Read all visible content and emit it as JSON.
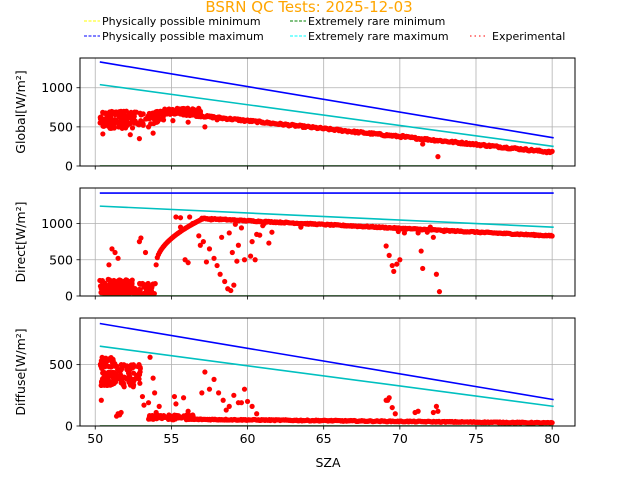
{
  "chart_data": {
    "type": "scatter",
    "title": "BSRN QC Tests: 2025-12-03",
    "title_color": "#ffa500",
    "xlabel": "SZA",
    "xlim": [
      49,
      81.5
    ],
    "xticks": [
      50,
      55,
      60,
      65,
      70,
      75,
      80
    ],
    "grid": true,
    "legend": {
      "placement": "top",
      "entries": [
        {
          "label": "Physically possible minimum",
          "color": "#ffff00",
          "style": "dashed"
        },
        {
          "label": "Extremely rare minimum",
          "color": "#008000",
          "style": "dashed"
        },
        {
          "label": "Physically possible maximum",
          "color": "#0000ff",
          "style": "dashed"
        },
        {
          "label": "Extremely rare maximum",
          "color": "#00ffff",
          "style": "dashed"
        },
        {
          "label": "Experimental",
          "color": "#ff0000",
          "style": "dotted"
        }
      ]
    },
    "panels": [
      {
        "name": "global",
        "ylabel": "Global[W/m²]",
        "ylim": [
          0,
          1380
        ],
        "yticks": [
          0,
          500,
          1000
        ],
        "series": [
          {
            "name": "Physically possible maximum",
            "color": "#0000ff",
            "x": [
              50.3,
              80.1
            ],
            "y": [
              1330,
              360
            ]
          },
          {
            "name": "Extremely rare maximum",
            "color": "#00c0c0",
            "x": [
              50.3,
              80.1
            ],
            "y": [
              1040,
              250
            ]
          },
          {
            "name": "Extremely rare minimum",
            "color": "#008000",
            "x": [
              50.3,
              80.1
            ],
            "y": [
              0,
              0
            ]
          },
          {
            "name": "Physically possible minimum",
            "color": "#ffff00",
            "x": [
              50.3,
              80.1
            ],
            "y": [
              -4,
              -4
            ]
          }
        ],
        "experimental_clusters": [
          {
            "x": [
              50.3,
              52.5
            ],
            "y": [
              480,
              700
            ],
            "n": 120
          },
          {
            "x": [
              52.5,
              54.5
            ],
            "y": [
              520,
              690
            ],
            "n": 50
          },
          {
            "x": [
              54.5,
              57.0
            ],
            "y": [
              660,
              740
            ],
            "n": 60
          }
        ],
        "experimental_trend": {
          "x": [
            54,
            80
          ],
          "y": [
            700,
            175
          ],
          "spread": 25
        },
        "experimental_points": [
          [
            50.5,
            410
          ],
          [
            51.2,
            520
          ],
          [
            52.3,
            400
          ],
          [
            52.9,
            350
          ],
          [
            53.8,
            420
          ],
          [
            53.5,
            500
          ],
          [
            55.1,
            580
          ],
          [
            56.1,
            560
          ],
          [
            57.2,
            500
          ],
          [
            58.0,
            590
          ],
          [
            59.8,
            570
          ],
          [
            61.0,
            560
          ],
          [
            72.5,
            120
          ],
          [
            71.5,
            280
          ],
          [
            70.2,
            390
          ]
        ]
      },
      {
        "name": "direct",
        "ylabel": "Direct[W/m²]",
        "ylim": [
          0,
          1490
        ],
        "yticks": [
          0,
          500,
          1000
        ],
        "series": [
          {
            "name": "Physically possible maximum",
            "color": "#0000ff",
            "x": [
              50.3,
              80.1
            ],
            "y": [
              1420,
              1420
            ]
          },
          {
            "name": "Extremely rare maximum",
            "color": "#00c0c0",
            "x": [
              50.3,
              80.1
            ],
            "y": [
              1240,
              950
            ]
          },
          {
            "name": "Extremely rare minimum",
            "color": "#008000",
            "x": [
              50.3,
              80.1
            ],
            "y": [
              0,
              0
            ]
          },
          {
            "name": "Physically possible minimum",
            "color": "#ffff00",
            "x": [
              50.3,
              80.1
            ],
            "y": [
              -4,
              -4
            ]
          }
        ],
        "experimental_clusters": [
          {
            "x": [
              50.3,
              52.5
            ],
            "y": [
              0,
              230
            ],
            "n": 140
          },
          {
            "x": [
              52.5,
              54.0
            ],
            "y": [
              0,
              180
            ],
            "n": 40
          }
        ],
        "experimental_trend": {
          "x": [
            57,
            80
          ],
          "y": [
            1070,
            830
          ],
          "spread": 15
        },
        "experimental_rise": {
          "x": [
            54.0,
            57.0
          ],
          "y": [
            430,
            1060
          ]
        },
        "experimental_points": [
          [
            51.1,
            650
          ],
          [
            51.3,
            600
          ],
          [
            51.5,
            520
          ],
          [
            50.9,
            430
          ],
          [
            53.0,
            800
          ],
          [
            52.9,
            750
          ],
          [
            53.3,
            600
          ],
          [
            55.3,
            1090
          ],
          [
            55.6,
            1080
          ],
          [
            56.2,
            1090
          ],
          [
            56.4,
            1000
          ],
          [
            55.6,
            950
          ],
          [
            56.8,
            830
          ],
          [
            57.1,
            750
          ],
          [
            56.9,
            700
          ],
          [
            57.5,
            650
          ],
          [
            57.8,
            520
          ],
          [
            58.0,
            420
          ],
          [
            58.2,
            300
          ],
          [
            58.5,
            200
          ],
          [
            58.7,
            100
          ],
          [
            58.9,
            75
          ],
          [
            59.1,
            150
          ],
          [
            57.3,
            470
          ],
          [
            56.1,
            460
          ],
          [
            55.9,
            500
          ],
          [
            58.3,
            810
          ],
          [
            58.8,
            870
          ],
          [
            59.2,
            990
          ],
          [
            59.4,
            700
          ],
          [
            59.6,
            940
          ],
          [
            60.3,
            750
          ],
          [
            60.6,
            850
          ],
          [
            61.0,
            970
          ],
          [
            60.2,
            550
          ],
          [
            60.5,
            500
          ],
          [
            61.1,
            1000
          ],
          [
            61.6,
            880
          ],
          [
            61.4,
            730
          ],
          [
            59.0,
            600
          ],
          [
            59.3,
            480
          ],
          [
            59.8,
            500
          ],
          [
            60.8,
            840
          ],
          [
            57.6,
            1050
          ],
          [
            63.5,
            950
          ],
          [
            69.1,
            690
          ],
          [
            69.3,
            560
          ],
          [
            69.5,
            420
          ],
          [
            69.6,
            340
          ],
          [
            69.8,
            440
          ],
          [
            70.0,
            500
          ],
          [
            69.9,
            890
          ],
          [
            70.3,
            870
          ],
          [
            71.2,
            870
          ],
          [
            71.4,
            620
          ],
          [
            71.5,
            380
          ],
          [
            71.8,
            880
          ],
          [
            72.2,
            810
          ],
          [
            72.4,
            300
          ],
          [
            72.6,
            60
          ],
          [
            72.0,
            950
          ],
          [
            72.9,
            890
          ]
        ]
      },
      {
        "name": "diffuse",
        "ylabel": "Diffuse[W/m²]",
        "ylim": [
          0,
          880
        ],
        "yticks": [
          0,
          500
        ],
        "series": [
          {
            "name": "Physically possible maximum",
            "color": "#0000ff",
            "x": [
              50.3,
              80.1
            ],
            "y": [
              835,
              215
            ]
          },
          {
            "name": "Extremely rare maximum",
            "color": "#00c0c0",
            "x": [
              50.3,
              80.1
            ],
            "y": [
              650,
              160
            ]
          },
          {
            "name": "Extremely rare minimum",
            "color": "#008000",
            "x": [
              50.3,
              80.1
            ],
            "y": [
              0,
              0
            ]
          },
          {
            "name": "Physically possible minimum",
            "color": "#ffff00",
            "x": [
              50.3,
              80.1
            ],
            "y": [
              -4,
              -4
            ]
          }
        ],
        "experimental_clusters": [
          {
            "x": [
              50.3,
              51.2
            ],
            "y": [
              330,
              560
            ],
            "n": 80
          },
          {
            "x": [
              51.2,
              53.0
            ],
            "y": [
              330,
              510
            ],
            "n": 70
          },
          {
            "x": [
              53.5,
              56.5
            ],
            "y": [
              50,
              90
            ],
            "n": 80
          }
        ],
        "experimental_trend": {
          "x": [
            56,
            80
          ],
          "y": [
            55,
            25
          ],
          "spread": 8
        },
        "experimental_points": [
          [
            50.4,
            210
          ],
          [
            51.4,
            80
          ],
          [
            51.5,
            100
          ],
          [
            51.6,
            90
          ],
          [
            51.7,
            110
          ],
          [
            51.9,
            320
          ],
          [
            52.5,
            320
          ],
          [
            53.1,
            240
          ],
          [
            53.2,
            170
          ],
          [
            53.5,
            190
          ],
          [
            53.6,
            560
          ],
          [
            53.8,
            390
          ],
          [
            53.9,
            270
          ],
          [
            54.2,
            160
          ],
          [
            54.0,
            110
          ],
          [
            55.2,
            240
          ],
          [
            55.3,
            180
          ],
          [
            55.8,
            230
          ],
          [
            56.1,
            120
          ],
          [
            56.4,
            90
          ],
          [
            57.0,
            270
          ],
          [
            57.2,
            440
          ],
          [
            57.5,
            300
          ],
          [
            57.8,
            380
          ],
          [
            58.1,
            270
          ],
          [
            58.4,
            210
          ],
          [
            58.8,
            160
          ],
          [
            59.1,
            250
          ],
          [
            59.4,
            190
          ],
          [
            59.8,
            300
          ],
          [
            60.0,
            200
          ],
          [
            60.3,
            160
          ],
          [
            60.6,
            100
          ],
          [
            59.6,
            190
          ],
          [
            58.6,
            130
          ],
          [
            69.1,
            210
          ],
          [
            69.2,
            210
          ],
          [
            69.3,
            230
          ],
          [
            69.5,
            150
          ],
          [
            69.7,
            100
          ],
          [
            71.0,
            110
          ],
          [
            71.2,
            120
          ],
          [
            72.2,
            110
          ],
          [
            72.4,
            160
          ],
          [
            72.5,
            120
          ]
        ]
      }
    ]
  }
}
